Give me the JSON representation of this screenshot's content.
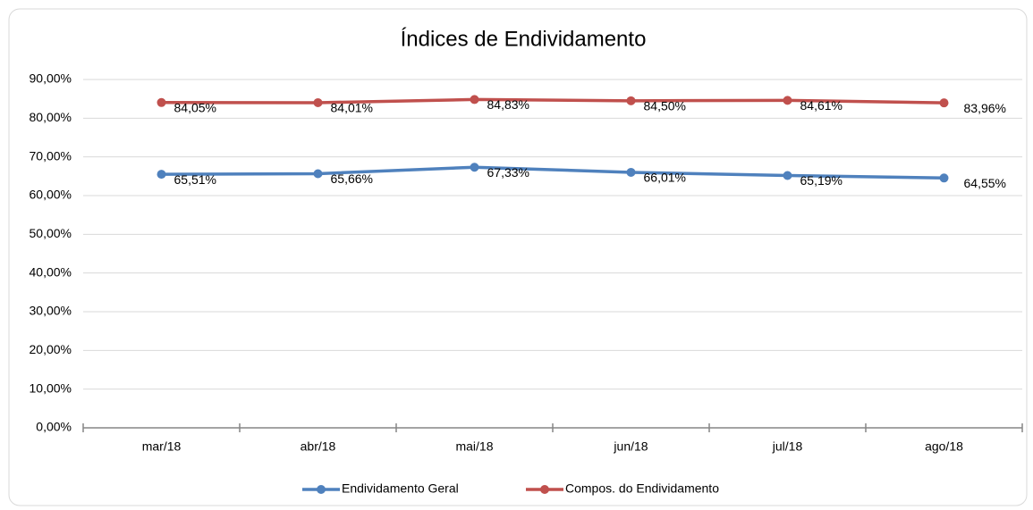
{
  "chart_data": {
    "type": "line",
    "title": "Índices de Endividamento",
    "categories": [
      "mar/18",
      "abr/18",
      "mai/18",
      "jun/18",
      "jul/18",
      "ago/18"
    ],
    "series": [
      {
        "name": "Endividamento Geral",
        "color": "#4f81bd",
        "values": [
          65.51,
          65.66,
          67.33,
          66.01,
          65.19,
          64.55
        ],
        "value_labels": [
          "65,51%",
          "65,66%",
          "67,33%",
          "66,01%",
          "65,19%",
          "64,55%"
        ]
      },
      {
        "name": "Compos. do Endividamento",
        "color": "#c0504d",
        "values": [
          84.05,
          84.01,
          84.83,
          84.5,
          84.61,
          83.96
        ],
        "value_labels": [
          "84,05%",
          "84,01%",
          "84,83%",
          "84,50%",
          "84,61%",
          "83,96%"
        ]
      }
    ],
    "ylim": [
      0,
      90
    ],
    "yticks": [
      {
        "value": 0,
        "label": "0,00%"
      },
      {
        "value": 10,
        "label": "10,00%"
      },
      {
        "value": 20,
        "label": "20,00%"
      },
      {
        "value": 30,
        "label": "30,00%"
      },
      {
        "value": 40,
        "label": "40,00%"
      },
      {
        "value": 50,
        "label": "50,00%"
      },
      {
        "value": 60,
        "label": "60,00%"
      },
      {
        "value": 70,
        "label": "70,00%"
      },
      {
        "value": 80,
        "label": "80,00%"
      },
      {
        "value": 90,
        "label": "90,00%"
      }
    ],
    "grid": true,
    "legend": "bottom"
  }
}
